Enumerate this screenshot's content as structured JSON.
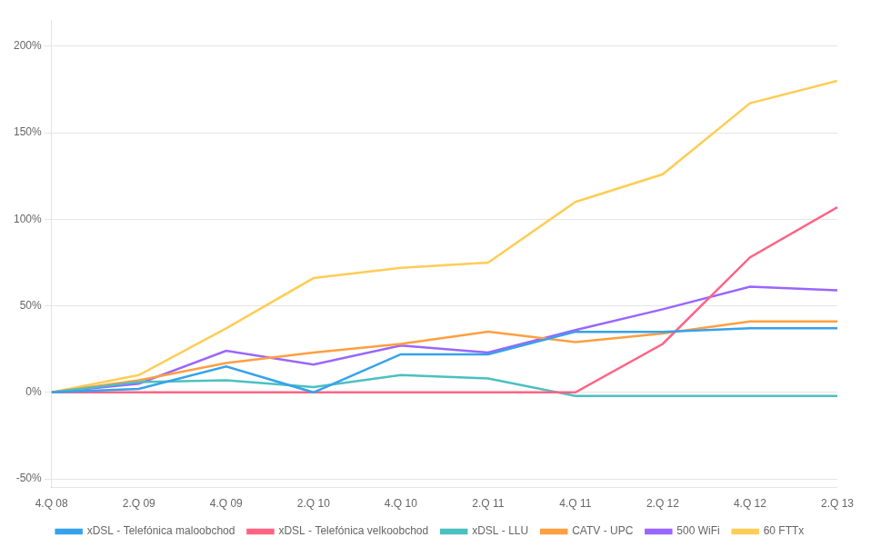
{
  "chart_data": {
    "type": "line",
    "categories": [
      "4.Q 08",
      "2.Q 09",
      "4.Q 09",
      "2.Q 10",
      "4.Q 10",
      "2.Q 11",
      "4.Q 11",
      "2.Q 12",
      "4.Q 12",
      "2.Q 13"
    ],
    "series": [
      {
        "name": "xDSL - Telefónica maloobchod",
        "values": [
          0,
          2,
          15,
          0,
          22,
          22,
          35,
          35,
          37,
          37
        ]
      },
      {
        "name": "xDSL - Telefónica velkoobchod",
        "values": [
          0,
          0,
          0,
          0,
          0,
          0,
          0,
          28,
          78,
          107
        ]
      },
      {
        "name": "xDSL - LLU",
        "values": [
          0,
          6,
          7,
          3,
          10,
          8,
          -2,
          -2,
          -2,
          -2
        ]
      },
      {
        "name": "CATV - UPC",
        "values": [
          0,
          7,
          17,
          23,
          28,
          35,
          29,
          34,
          41,
          41
        ]
      },
      {
        "name": "500 WiFi",
        "values": [
          0,
          5,
          24,
          16,
          27,
          23,
          36,
          48,
          61,
          59
        ]
      },
      {
        "name": "60 FTTx",
        "values": [
          0,
          10,
          37,
          66,
          72,
          75,
          110,
          126,
          167,
          180
        ]
      }
    ],
    "ylim": [
      -55,
      215
    ],
    "yticks": [
      {
        "value": -50,
        "label": "-50%"
      },
      {
        "value": 0,
        "label": "0%"
      },
      {
        "value": 50,
        "label": "50%"
      },
      {
        "value": 100,
        "label": "100%"
      },
      {
        "value": 150,
        "label": "150%"
      },
      {
        "value": 200,
        "label": "200%"
      }
    ],
    "grid": true,
    "legend": "bottom"
  }
}
